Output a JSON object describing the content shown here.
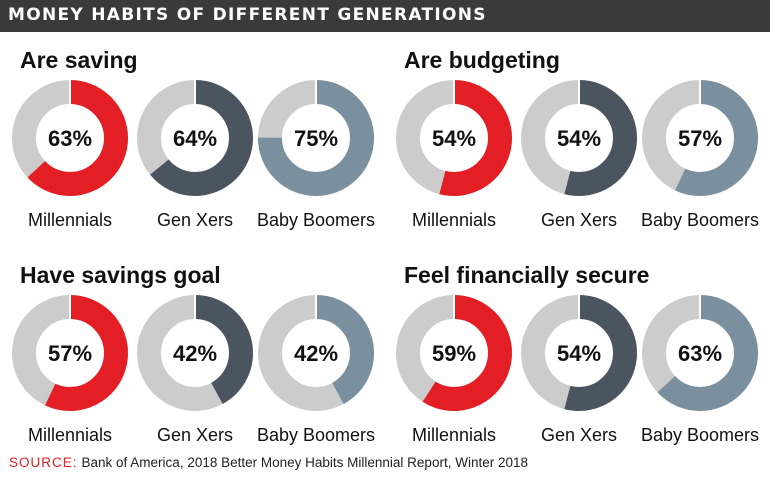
{
  "header": {
    "title": "MONEY HABITS OF DIFFERENT GENERATIONS"
  },
  "colors": {
    "track": "#cccccc",
    "Millennials": "#e31e24",
    "Gen Xers": "#4a5560",
    "Baby Boomers": "#7a909e"
  },
  "chart_data": [
    {
      "type": "pie",
      "title": "Are saving",
      "categories": [
        "Millennials",
        "Gen Xers",
        "Baby Boomers"
      ],
      "values": [
        63,
        64,
        75
      ],
      "labels": [
        "63%",
        "64%",
        "75%"
      ]
    },
    {
      "type": "pie",
      "title": "Are budgeting",
      "categories": [
        "Millennials",
        "Gen Xers",
        "Baby Boomers"
      ],
      "values": [
        54,
        54,
        57
      ],
      "labels": [
        "54%",
        "54%",
        "57%"
      ]
    },
    {
      "type": "pie",
      "title": "Have savings goal",
      "categories": [
        "Millennials",
        "Gen Xers",
        "Baby Boomers"
      ],
      "values": [
        57,
        42,
        42
      ],
      "labels": [
        "57%",
        "42%",
        "42%"
      ]
    },
    {
      "type": "pie",
      "title": "Feel financially secure",
      "categories": [
        "Millennials",
        "Gen Xers",
        "Baby Boomers"
      ],
      "values": [
        59,
        54,
        63
      ],
      "labels": [
        "59%",
        "54%",
        "63%"
      ]
    }
  ],
  "source": {
    "label": "SOURCE:",
    "text": "Bank of America, 2018 Better Money Habits Millennial Report, Winter 2018"
  }
}
